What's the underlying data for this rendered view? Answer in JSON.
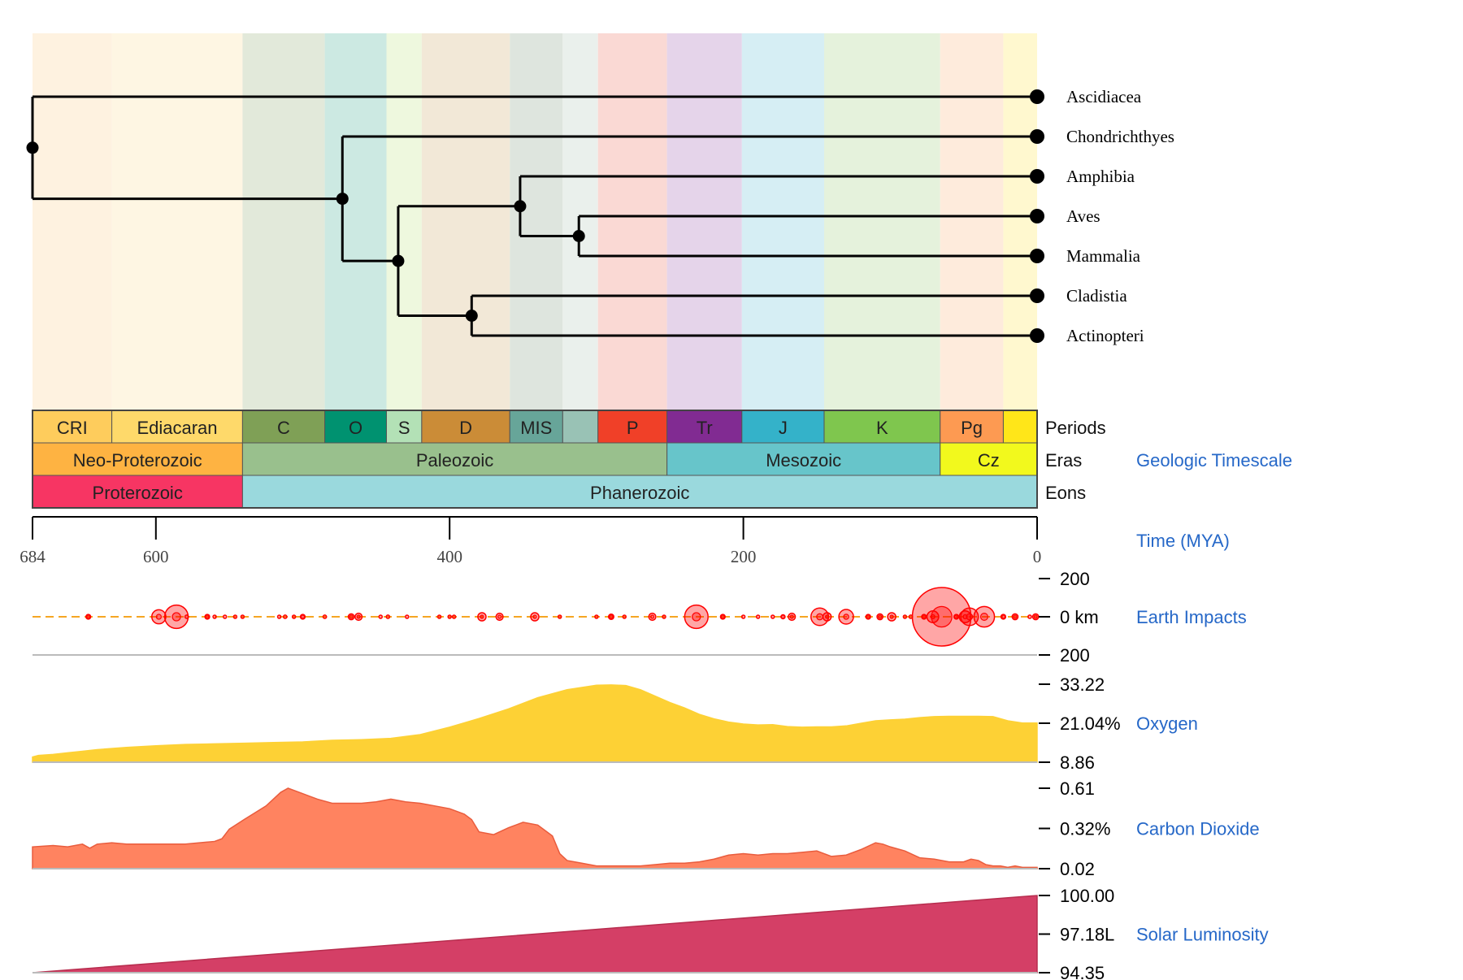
{
  "chart_data": [
    {
      "type": "tree",
      "taxa": [
        "Ascidiacea",
        "Chondrichthyes",
        "Amphibia",
        "Aves",
        "Mammalia",
        "Cladistia",
        "Actinopteri"
      ],
      "nodes": [
        {
          "id": "root",
          "age": 684,
          "children": [
            "Ascidiacea",
            "vert"
          ]
        },
        {
          "id": "vert",
          "age": 473,
          "children": [
            "Chondrichthyes",
            "osteich"
          ]
        },
        {
          "id": "osteich",
          "age": 435,
          "children": [
            "tetra",
            "actino"
          ]
        },
        {
          "id": "tetra",
          "age": 352,
          "children": [
            "Amphibia",
            "amniota"
          ]
        },
        {
          "id": "amniota",
          "age": 312,
          "children": [
            "Aves",
            "Mammalia"
          ]
        },
        {
          "id": "actino",
          "age": 385,
          "children": [
            "Cladistia",
            "Actinopteri"
          ]
        }
      ]
    },
    {
      "type": "timescale",
      "title": "Geologic Timescale",
      "xlim": [
        684,
        0
      ],
      "rows": [
        {
          "label": "Periods",
          "segments": [
            {
              "name": "CRI",
              "start": 684,
              "end": 630,
              "color": "#FECC5C",
              "bg": "#FEF2E0"
            },
            {
              "name": "Ediacaran",
              "start": 630,
              "end": 541,
              "color": "#FED96A",
              "bg": "#FEF6E3"
            },
            {
              "name": "C",
              "start": 541,
              "end": 485,
              "color": "#7FA056",
              "bg": "#E2E9DA"
            },
            {
              "name": "O",
              "start": 485,
              "end": 443,
              "color": "#009270",
              "bg": "#CCE9E2"
            },
            {
              "name": "S",
              "start": 443,
              "end": 419,
              "color": "#B3E1B6",
              "bg": "#EEF8DE"
            },
            {
              "name": "D",
              "start": 419,
              "end": 359,
              "color": "#CB8C37",
              "bg": "#F2E8D7"
            },
            {
              "name": "MIS",
              "start": 359,
              "end": 323,
              "color": "#67A599",
              "bg": "#DEE5DE"
            },
            {
              "name": "",
              "start": 323,
              "end": 299,
              "color": "#99C2B5",
              "bg": "#EAF0EC"
            },
            {
              "name": "P",
              "start": 299,
              "end": 252,
              "color": "#F04028",
              "bg": "#FAD9D4"
            },
            {
              "name": "Tr",
              "start": 252,
              "end": 201,
              "color": "#812B92",
              "bg": "#E5D4EA"
            },
            {
              "name": "J",
              "start": 201,
              "end": 145,
              "color": "#34B2C9",
              "bg": "#D6EEF4"
            },
            {
              "name": "K",
              "start": 145,
              "end": 66,
              "color": "#7FC64E",
              "bg": "#E5F2DC"
            },
            {
              "name": "Pg",
              "start": 66,
              "end": 23,
              "color": "#FD9A52",
              "bg": "#FEEBDC"
            },
            {
              "name": "",
              "start": 23,
              "end": 0,
              "color": "#FFE619",
              "bg": "#FFF8CF"
            }
          ]
        },
        {
          "label": "Eras",
          "segments": [
            {
              "name": "Neo-Proterozoic",
              "start": 684,
              "end": 541,
              "color": "#FEB342"
            },
            {
              "name": "Paleozoic",
              "start": 541,
              "end": 252,
              "color": "#99C08D"
            },
            {
              "name": "Mesozoic",
              "start": 252,
              "end": 66,
              "color": "#67C5CA"
            },
            {
              "name": "Cz",
              "start": 66,
              "end": 0,
              "color": "#F2F91D"
            }
          ]
        },
        {
          "label": "Eons",
          "segments": [
            {
              "name": "Proterozoic",
              "start": 684,
              "end": 541,
              "color": "#F73563"
            },
            {
              "name": "Phanerozoic",
              "start": 541,
              "end": 0,
              "color": "#9AD9DD"
            }
          ]
        }
      ]
    },
    {
      "type": "axis",
      "title": "Time (MYA)",
      "xlim": [
        684,
        0
      ],
      "ticks": [
        684,
        600,
        400,
        200,
        0
      ]
    },
    {
      "type": "scatter",
      "title": "Earth Impacts",
      "ylabel_ticks": [
        "200",
        "0 km",
        "200"
      ],
      "x": [
        646,
        598,
        586,
        579,
        565,
        560,
        553,
        546,
        541,
        516,
        512,
        506,
        500,
        485,
        467,
        462,
        447,
        442,
        429,
        407,
        400,
        397,
        378,
        366,
        342,
        325,
        300,
        290,
        281,
        262,
        254,
        232,
        214,
        200,
        190,
        180,
        173,
        167,
        148,
        143,
        130,
        115,
        107,
        99,
        90,
        86,
        77,
        71,
        65,
        55,
        49,
        46,
        36,
        23,
        15,
        5,
        1
      ],
      "diameters": [
        8,
        24,
        40,
        6,
        8,
        5,
        3,
        3,
        4,
        4,
        6,
        5,
        8,
        6,
        10,
        12,
        4,
        6,
        3,
        5,
        3,
        4,
        14,
        12,
        14,
        3,
        3,
        9,
        3,
        12,
        5,
        40,
        8,
        4,
        3,
        3,
        7,
        12,
        30,
        14,
        25,
        8,
        10,
        14,
        4,
        6,
        8,
        20,
        100,
        8,
        20,
        30,
        35,
        8,
        10,
        6,
        10
      ]
    },
    {
      "type": "area",
      "title": "Oxygen",
      "unit": "%",
      "ylim": [
        8.86,
        33.22
      ],
      "y_ticks": [
        "33.22",
        "21.04%",
        "8.86"
      ],
      "x": [
        684,
        680,
        670,
        660,
        650,
        640,
        620,
        600,
        580,
        560,
        540,
        520,
        500,
        480,
        460,
        440,
        420,
        400,
        380,
        360,
        340,
        320,
        300,
        290,
        280,
        270,
        260,
        250,
        240,
        230,
        220,
        210,
        200,
        190,
        180,
        170,
        160,
        150,
        140,
        130,
        120,
        110,
        100,
        90,
        80,
        70,
        60,
        50,
        40,
        30,
        20,
        10,
        0
      ],
      "y": [
        10.5,
        11.0,
        11.3,
        11.8,
        12.3,
        12.8,
        13.5,
        14.0,
        14.4,
        14.6,
        14.8,
        15.0,
        15.2,
        15.7,
        15.9,
        16.3,
        17.5,
        19.8,
        22.5,
        25.5,
        29.0,
        31.5,
        32.9,
        33.0,
        32.8,
        31.5,
        29.5,
        27.5,
        25.8,
        23.8,
        22.4,
        21.4,
        20.8,
        20.5,
        20.6,
        20.0,
        19.8,
        19.9,
        19.9,
        20.2,
        21.0,
        21.8,
        22.1,
        22.3,
        22.8,
        23.1,
        23.2,
        23.2,
        23.2,
        23.1,
        21.8,
        21.1,
        21.1
      ]
    },
    {
      "type": "area",
      "title": "Carbon Dioxide",
      "unit": "%",
      "ylim": [
        0.02,
        0.61
      ],
      "y_ticks": [
        "0.61",
        "0.32%",
        "0.02"
      ],
      "x": [
        684,
        670,
        660,
        650,
        645,
        640,
        630,
        620,
        600,
        580,
        560,
        555,
        550,
        540,
        525,
        515,
        510,
        505,
        500,
        490,
        480,
        470,
        460,
        450,
        440,
        430,
        420,
        410,
        400,
        390,
        385,
        380,
        370,
        360,
        350,
        340,
        330,
        325,
        320,
        310,
        300,
        290,
        280,
        270,
        260,
        250,
        240,
        230,
        220,
        210,
        200,
        190,
        180,
        170,
        160,
        150,
        145,
        140,
        130,
        120,
        110,
        105,
        100,
        90,
        80,
        70,
        60,
        50,
        45,
        40,
        35,
        30,
        25,
        20,
        15,
        10,
        5,
        0
      ],
      "y": [
        0.18,
        0.19,
        0.18,
        0.2,
        0.17,
        0.2,
        0.21,
        0.2,
        0.2,
        0.2,
        0.22,
        0.24,
        0.31,
        0.38,
        0.48,
        0.58,
        0.61,
        0.59,
        0.57,
        0.53,
        0.5,
        0.5,
        0.5,
        0.51,
        0.53,
        0.51,
        0.5,
        0.48,
        0.46,
        0.42,
        0.38,
        0.29,
        0.27,
        0.32,
        0.36,
        0.34,
        0.26,
        0.13,
        0.08,
        0.06,
        0.04,
        0.04,
        0.04,
        0.04,
        0.05,
        0.06,
        0.06,
        0.07,
        0.09,
        0.12,
        0.13,
        0.12,
        0.13,
        0.13,
        0.14,
        0.15,
        0.13,
        0.11,
        0.12,
        0.16,
        0.21,
        0.2,
        0.18,
        0.15,
        0.1,
        0.09,
        0.07,
        0.07,
        0.09,
        0.08,
        0.05,
        0.04,
        0.04,
        0.03,
        0.04,
        0.03,
        0.03,
        0.03
      ]
    },
    {
      "type": "area",
      "title": "Solar Luminosity",
      "unit": "L",
      "ylim": [
        94.35,
        100.0
      ],
      "y_ticks": [
        "100.00",
        "97.18L",
        "94.35"
      ],
      "x": [
        684,
        0
      ],
      "y": [
        94.35,
        100.0
      ]
    }
  ],
  "colors": {
    "impact_fill": "rgba(255,0,0,0.35)",
    "impact_stroke": "#ff0000",
    "impact_line": "#F5A623",
    "oxygen": "#FDD135",
    "co2": "#FF8360",
    "co2_stroke": "#E95C3D",
    "solar": "#D43F66",
    "solar_stroke": "#B72D4E",
    "label_blue": "#2668C8"
  }
}
